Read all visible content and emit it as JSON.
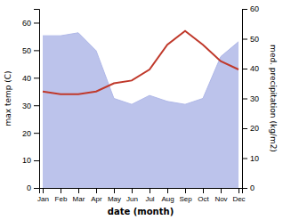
{
  "chart_data": {
    "type": "line",
    "categories": [
      "Jan",
      "Feb",
      "Mar",
      "Apr",
      "May",
      "Jun",
      "Jul",
      "Aug",
      "Sep",
      "Oct",
      "Nov",
      "Dec"
    ],
    "xlabel": "date (month)",
    "ylabel": "max temp (C)",
    "y2label": "med. precipitation (kg/m2)",
    "ylim": [
      0,
      65
    ],
    "yticks": [
      0,
      10,
      20,
      30,
      40,
      50,
      60
    ],
    "y2lim": [
      0,
      60
    ],
    "y2ticks": [
      0,
      10,
      20,
      30,
      40,
      50,
      60
    ],
    "grid": false,
    "series": [
      {
        "type": "area",
        "axis": "y2",
        "color": "#b0b8e8",
        "values": [
          51,
          51,
          52,
          46,
          30,
          28,
          31,
          29,
          28,
          30,
          44,
          49
        ]
      },
      {
        "type": "line",
        "color": "#c0392b",
        "values": [
          35,
          34,
          34,
          35,
          38,
          39,
          43,
          52,
          57,
          52,
          46,
          43
        ]
      }
    ]
  }
}
